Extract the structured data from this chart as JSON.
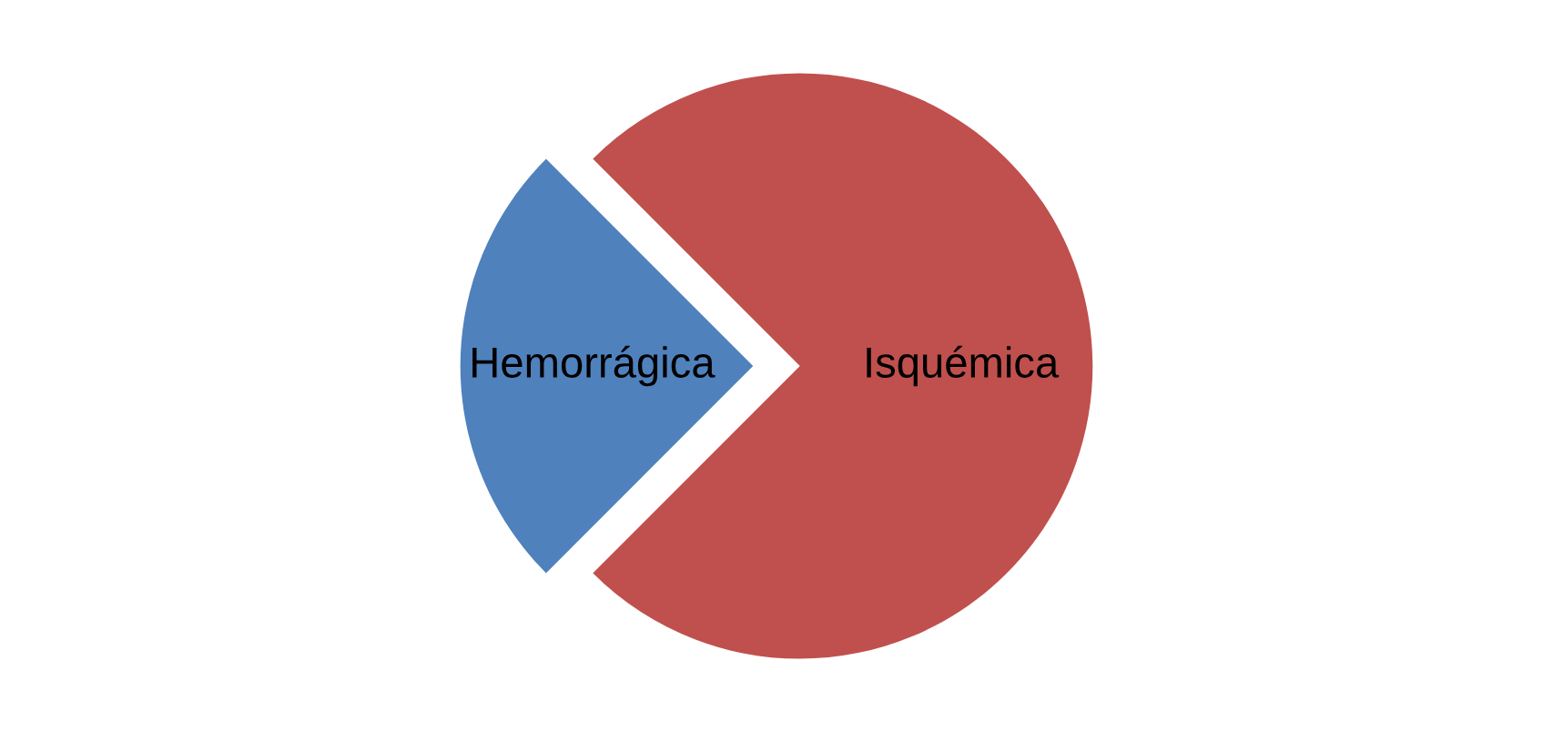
{
  "chart_data": {
    "type": "pie",
    "categories": [
      "Hemorrágica",
      "Isquémica"
    ],
    "values": [
      25,
      75
    ],
    "colors": [
      "#4f81bd",
      "#c0504d"
    ],
    "legend": false
  }
}
